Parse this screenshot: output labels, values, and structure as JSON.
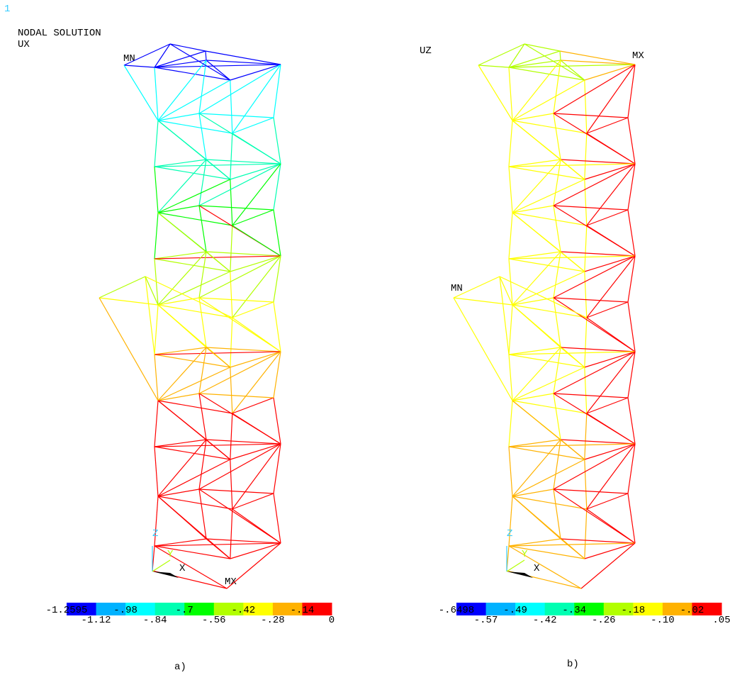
{
  "panels": [
    {
      "caption": "a)",
      "window_number": "1",
      "title": "NODAL SOLUTION",
      "result": "UX",
      "min_label": "MN",
      "max_label": "MX",
      "triad": {
        "z": "Z",
        "y": "Y",
        "x": "X"
      },
      "legend": {
        "colors": [
          "#0000ff",
          "#00b2ff",
          "#00ffff",
          "#00ffb2",
          "#00ff00",
          "#b2ff00",
          "#ffff00",
          "#ffb200",
          "#ff0000"
        ],
        "labels": [
          "-1.2595",
          "-1.12",
          "-.98",
          "-.84",
          "-.7",
          "-.56",
          "-.42",
          "-.28",
          "-.14",
          "0"
        ]
      }
    },
    {
      "caption": "b)",
      "result": "UZ",
      "min_label": "MN",
      "max_label": "MX",
      "triad": {
        "z": "Z",
        "y": "Y",
        "x": "X"
      },
      "legend": {
        "colors": [
          "#0000ff",
          "#00b2ff",
          "#00ffff",
          "#00ffb2",
          "#00ff00",
          "#b2ff00",
          "#ffff00",
          "#ffb200",
          "#ff0000"
        ],
        "labels": [
          "-.6498",
          "-.57",
          "-.49",
          "-.42",
          "-.34",
          "-.26",
          "-.18",
          "-.10",
          "-.02",
          ".05"
        ]
      }
    }
  ]
}
